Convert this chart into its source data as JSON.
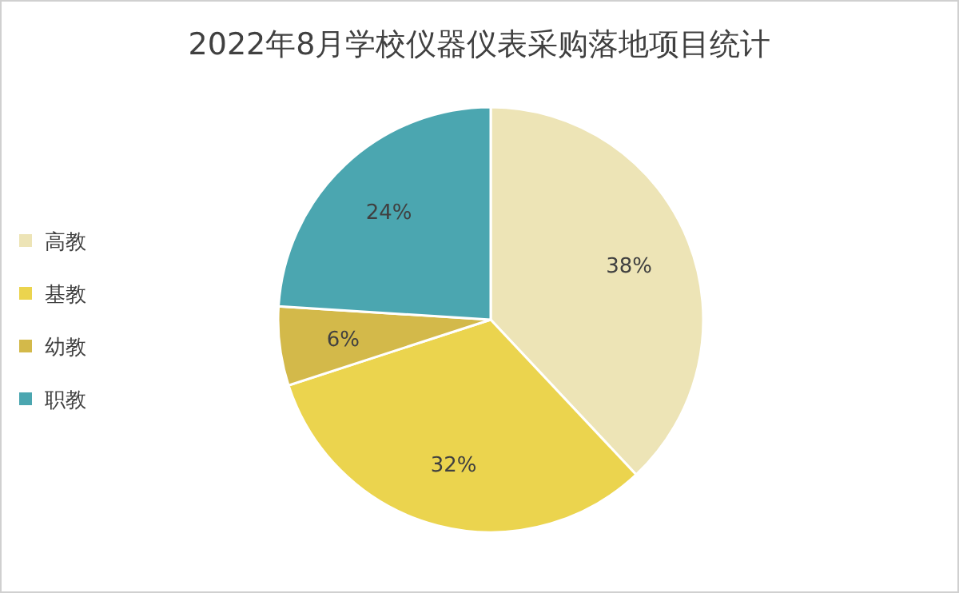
{
  "chart_data": {
    "type": "pie",
    "title": "2022年8月学校仪器仪表采购落地项目统计",
    "categories": [
      "高教",
      "基教",
      "幼教",
      "职教"
    ],
    "values": [
      38,
      32,
      6,
      24
    ],
    "colors": [
      "#ede4b6",
      "#ebd44e",
      "#d3b94a",
      "#4ba6b0"
    ],
    "value_labels": [
      "38%",
      "32%",
      "6%",
      "24%"
    ],
    "legend": "left"
  }
}
